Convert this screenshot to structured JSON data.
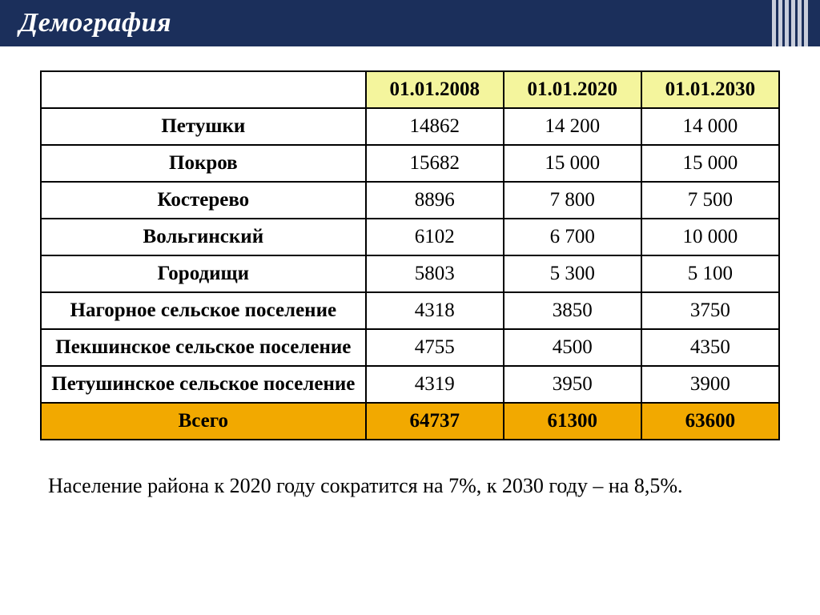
{
  "header": {
    "title": "Демография"
  },
  "table": {
    "columns": [
      "",
      "01.01.2008",
      "01.01.2020",
      "01.01.2030"
    ],
    "col_widths": [
      "44%",
      "18.67%",
      "18.67%",
      "18.67%"
    ],
    "header_bg": "#f4f59d",
    "border_color": "#000000",
    "total_bg": "#f2a900",
    "rows": [
      {
        "label": "Петушки",
        "v": [
          "14862",
          "14 200",
          "14 000"
        ]
      },
      {
        "label": "Покров",
        "v": [
          "15682",
          "15 000",
          "15 000"
        ]
      },
      {
        "label": "Костерево",
        "v": [
          "8896",
          "7 800",
          "7 500"
        ]
      },
      {
        "label": "Вольгинский",
        "v": [
          "6102",
          "6 700",
          "10 000"
        ]
      },
      {
        "label": "Городищи",
        "v": [
          "5803",
          "5 300",
          "5 100"
        ]
      },
      {
        "label": "Нагорное сельское поселение",
        "v": [
          "4318",
          "3850",
          "3750"
        ]
      },
      {
        "label": "Пекшинское сельское поселение",
        "v": [
          "4755",
          "4500",
          "4350"
        ]
      },
      {
        "label": "Петушинское сельское поселение",
        "v": [
          "4319",
          "3950",
          "3900"
        ]
      }
    ],
    "total": {
      "label": "Всего",
      "v": [
        "64737",
        "61300",
        "63600"
      ]
    }
  },
  "note": "Население района  к 2020 году сократится на 7%,   к 2030 году – на 8,5%."
}
